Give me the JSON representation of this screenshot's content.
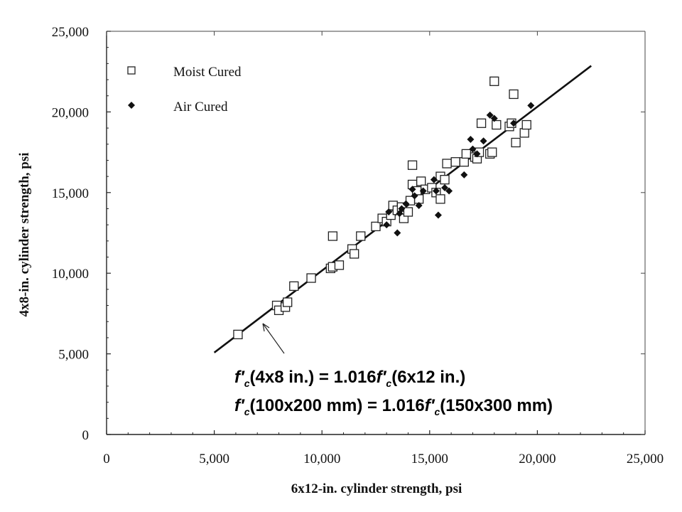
{
  "chart_data": {
    "type": "scatter",
    "xlabel": "6x12-in. cylinder strength, psi",
    "ylabel": "4x8-in. cylinder strength, psi",
    "xlim": [
      0,
      25000
    ],
    "ylim": [
      0,
      25000
    ],
    "grid": false,
    "legend_position": "top-left",
    "x_ticks": [
      0,
      5000,
      10000,
      15000,
      20000,
      25000
    ],
    "x_tick_labels": [
      "0",
      "5,000",
      "10,000",
      "15,000",
      "20,000",
      "25,000"
    ],
    "y_ticks": [
      0,
      5000,
      10000,
      15000,
      20000,
      25000
    ],
    "y_tick_labels": [
      "0",
      "5,000",
      "10,000",
      "15,000",
      "20,000",
      "25,000"
    ],
    "series": [
      {
        "name": "Moist Cured",
        "marker": "open-square",
        "points": [
          [
            6100,
            6200
          ],
          [
            7900,
            8000
          ],
          [
            8000,
            7700
          ],
          [
            8300,
            7900
          ],
          [
            8400,
            8200
          ],
          [
            8700,
            9200
          ],
          [
            9500,
            9700
          ],
          [
            10400,
            10300
          ],
          [
            10500,
            10400
          ],
          [
            10800,
            10500
          ],
          [
            10500,
            12300
          ],
          [
            11400,
            11500
          ],
          [
            11500,
            11200
          ],
          [
            11800,
            12300
          ],
          [
            12500,
            12900
          ],
          [
            12800,
            13400
          ],
          [
            13000,
            13200
          ],
          [
            13200,
            13600
          ],
          [
            13300,
            14200
          ],
          [
            13500,
            13900
          ],
          [
            13700,
            14100
          ],
          [
            13800,
            13400
          ],
          [
            14000,
            13800
          ],
          [
            14100,
            14500
          ],
          [
            14200,
            15500
          ],
          [
            14200,
            16700
          ],
          [
            14400,
            15100
          ],
          [
            14500,
            14600
          ],
          [
            14600,
            15700
          ],
          [
            14800,
            15200
          ],
          [
            15100,
            15300
          ],
          [
            15300,
            15000
          ],
          [
            15500,
            14600
          ],
          [
            15500,
            16000
          ],
          [
            15700,
            15800
          ],
          [
            15800,
            16800
          ],
          [
            16200,
            16900
          ],
          [
            16600,
            16900
          ],
          [
            16700,
            17400
          ],
          [
            17100,
            17200
          ],
          [
            17200,
            17100
          ],
          [
            17300,
            17500
          ],
          [
            17400,
            19300
          ],
          [
            17800,
            17400
          ],
          [
            17900,
            17500
          ],
          [
            18000,
            21900
          ],
          [
            18100,
            19200
          ],
          [
            18700,
            19100
          ],
          [
            18800,
            19300
          ],
          [
            18900,
            21100
          ],
          [
            19000,
            18100
          ],
          [
            19400,
            18700
          ],
          [
            19500,
            19200
          ]
        ]
      },
      {
        "name": "Air Cured",
        "marker": "filled-diamond",
        "points": [
          [
            13000,
            13000
          ],
          [
            13100,
            13800
          ],
          [
            13500,
            12500
          ],
          [
            13600,
            13700
          ],
          [
            13700,
            14000
          ],
          [
            13900,
            14300
          ],
          [
            14200,
            15200
          ],
          [
            14300,
            14800
          ],
          [
            14500,
            14200
          ],
          [
            14700,
            15100
          ],
          [
            15200,
            15800
          ],
          [
            15300,
            15100
          ],
          [
            15400,
            13600
          ],
          [
            15700,
            15300
          ],
          [
            15900,
            15100
          ],
          [
            16600,
            16100
          ],
          [
            16900,
            18300
          ],
          [
            17000,
            17700
          ],
          [
            17200,
            17400
          ],
          [
            17500,
            18200
          ],
          [
            17800,
            19800
          ],
          [
            18000,
            19600
          ],
          [
            18900,
            19300
          ],
          [
            19700,
            20400
          ]
        ]
      }
    ],
    "fit_line": {
      "slope": 1.016,
      "intercept": 0,
      "x_range": [
        5000,
        22500
      ]
    },
    "annotations": [
      {
        "target": [
          7200,
          7200
        ]
      }
    ]
  }
}
